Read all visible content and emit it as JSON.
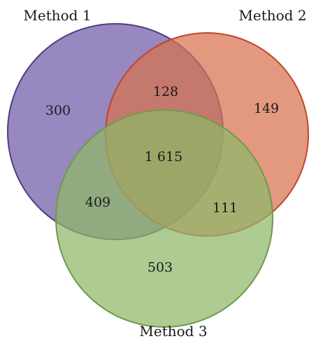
{
  "sets": [
    {
      "id": "m1",
      "label": "Method 1",
      "fill": "#6f5aa6",
      "stroke": "#4f3e82"
    },
    {
      "id": "m2",
      "label": "Method 2",
      "fill": "#d7714f",
      "stroke": "#c0452a"
    },
    {
      "id": "m3",
      "label": "Method 3",
      "fill": "#8fb768",
      "stroke": "#6f9a4a"
    }
  ],
  "regions": {
    "only_1": "300",
    "only_2": "149",
    "only_3": "503",
    "m1_m2": "128",
    "m1_m3": "409",
    "m2_m3": "111",
    "all": "1 615"
  }
}
